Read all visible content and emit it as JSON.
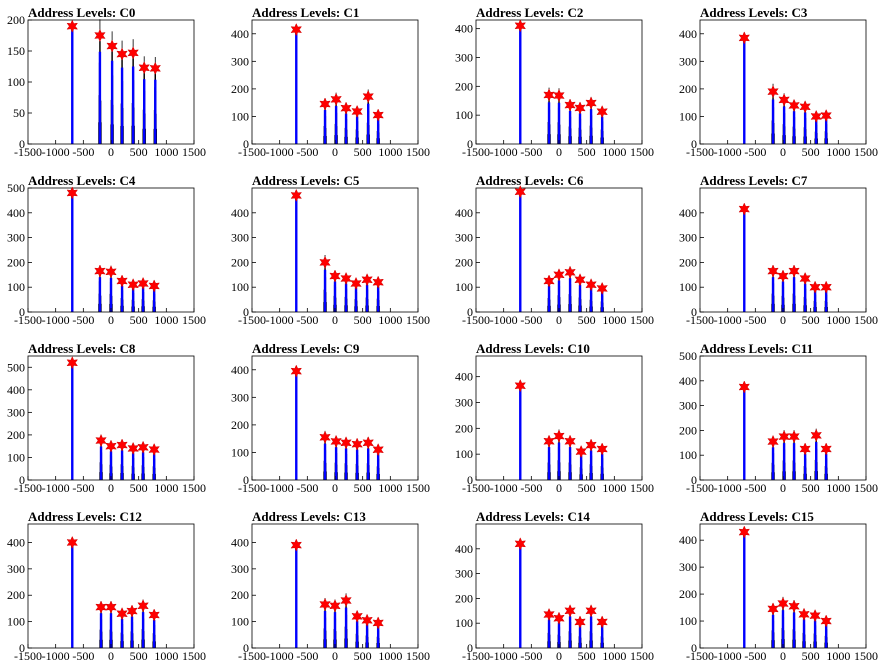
{
  "chart_data": [
    {
      "type": "bar",
      "title": "Address Levels: C0",
      "xlim": [
        -1500,
        1500
      ],
      "ylim": [
        0,
        200
      ],
      "yticks": [
        0,
        50,
        100,
        150,
        200
      ],
      "xticks": [
        -1500,
        -1000,
        -500,
        0,
        500,
        1000,
        1500
      ],
      "peaks": [
        {
          "x": -700,
          "y": 190
        },
        {
          "x": -200,
          "y": 175
        },
        {
          "x": 20,
          "y": 158
        },
        {
          "x": 200,
          "y": 145
        },
        {
          "x": 400,
          "y": 147
        },
        {
          "x": 600,
          "y": 123
        },
        {
          "x": 800,
          "y": 122
        }
      ]
    },
    {
      "type": "bar",
      "title": "Address Levels: C1",
      "xlim": [
        -1500,
        1500
      ],
      "ylim": [
        0,
        450
      ],
      "yticks": [
        0,
        100,
        200,
        300,
        400
      ],
      "xticks": [
        -1500,
        -1000,
        -500,
        0,
        500,
        1000,
        1500
      ],
      "peaks": [
        {
          "x": -700,
          "y": 415
        },
        {
          "x": -180,
          "y": 145
        },
        {
          "x": 20,
          "y": 162
        },
        {
          "x": 200,
          "y": 130
        },
        {
          "x": 400,
          "y": 118
        },
        {
          "x": 600,
          "y": 172
        },
        {
          "x": 780,
          "y": 105
        }
      ]
    },
    {
      "type": "bar",
      "title": "Address Levels: C2",
      "xlim": [
        -1500,
        1500
      ],
      "ylim": [
        0,
        430
      ],
      "yticks": [
        0,
        100,
        200,
        300,
        400
      ],
      "xticks": [
        -1500,
        -1000,
        -500,
        0,
        500,
        1000,
        1500
      ],
      "peaks": [
        {
          "x": -700,
          "y": 410
        },
        {
          "x": -180,
          "y": 170
        },
        {
          "x": 0,
          "y": 168
        },
        {
          "x": 200,
          "y": 135
        },
        {
          "x": 380,
          "y": 125
        },
        {
          "x": 580,
          "y": 142
        },
        {
          "x": 780,
          "y": 112
        }
      ]
    },
    {
      "type": "bar",
      "title": "Address Levels: C3",
      "xlim": [
        -1500,
        1500
      ],
      "ylim": [
        0,
        450
      ],
      "yticks": [
        0,
        100,
        200,
        300,
        400
      ],
      "xticks": [
        -1500,
        -1000,
        -500,
        0,
        500,
        1000,
        1500
      ],
      "peaks": [
        {
          "x": -700,
          "y": 385
        },
        {
          "x": -180,
          "y": 190
        },
        {
          "x": 20,
          "y": 160
        },
        {
          "x": 200,
          "y": 140
        },
        {
          "x": 400,
          "y": 135
        },
        {
          "x": 600,
          "y": 100
        },
        {
          "x": 780,
          "y": 103
        }
      ]
    },
    {
      "type": "bar",
      "title": "Address Levels: C4",
      "xlim": [
        -1500,
        1500
      ],
      "ylim": [
        0,
        500
      ],
      "yticks": [
        0,
        100,
        200,
        300,
        400,
        500
      ],
      "xticks": [
        -1500,
        -1000,
        -500,
        0,
        500,
        1000,
        1500
      ],
      "peaks": [
        {
          "x": -700,
          "y": 480
        },
        {
          "x": -200,
          "y": 165
        },
        {
          "x": 0,
          "y": 162
        },
        {
          "x": 200,
          "y": 125
        },
        {
          "x": 400,
          "y": 110
        },
        {
          "x": 580,
          "y": 115
        },
        {
          "x": 780,
          "y": 105
        }
      ]
    },
    {
      "type": "bar",
      "title": "Address Levels: C5",
      "xlim": [
        -1500,
        1500
      ],
      "ylim": [
        0,
        500
      ],
      "yticks": [
        0,
        100,
        200,
        300,
        400
      ],
      "xticks": [
        -1500,
        -1000,
        -500,
        0,
        500,
        1000,
        1500
      ],
      "peaks": [
        {
          "x": -700,
          "y": 470
        },
        {
          "x": -180,
          "y": 200
        },
        {
          "x": 0,
          "y": 145
        },
        {
          "x": 200,
          "y": 135
        },
        {
          "x": 380,
          "y": 115
        },
        {
          "x": 580,
          "y": 130
        },
        {
          "x": 780,
          "y": 120
        }
      ]
    },
    {
      "type": "bar",
      "title": "Address Levels: C6",
      "xlim": [
        -1500,
        1500
      ],
      "ylim": [
        0,
        500
      ],
      "yticks": [
        0,
        100,
        200,
        300,
        400
      ],
      "xticks": [
        -1500,
        -1000,
        -500,
        0,
        500,
        1000,
        1500
      ],
      "peaks": [
        {
          "x": -700,
          "y": 485
        },
        {
          "x": -180,
          "y": 125
        },
        {
          "x": 0,
          "y": 150
        },
        {
          "x": 200,
          "y": 160
        },
        {
          "x": 380,
          "y": 130
        },
        {
          "x": 580,
          "y": 110
        },
        {
          "x": 780,
          "y": 95
        }
      ]
    },
    {
      "type": "bar",
      "title": "Address Levels: C7",
      "xlim": [
        -1500,
        1500
      ],
      "ylim": [
        0,
        500
      ],
      "yticks": [
        0,
        100,
        200,
        300,
        400
      ],
      "xticks": [
        -1500,
        -1000,
        -500,
        0,
        500,
        1000,
        1500
      ],
      "peaks": [
        {
          "x": -700,
          "y": 415
        },
        {
          "x": -180,
          "y": 165
        },
        {
          "x": 0,
          "y": 145
        },
        {
          "x": 200,
          "y": 165
        },
        {
          "x": 400,
          "y": 135
        },
        {
          "x": 580,
          "y": 100
        },
        {
          "x": 780,
          "y": 100
        }
      ]
    },
    {
      "type": "bar",
      "title": "Address Levels: C8",
      "xlim": [
        -1500,
        1500
      ],
      "ylim": [
        0,
        550
      ],
      "yticks": [
        0,
        100,
        200,
        300,
        400,
        500
      ],
      "xticks": [
        -1500,
        -1000,
        -500,
        0,
        500,
        1000,
        1500
      ],
      "peaks": [
        {
          "x": -700,
          "y": 520
        },
        {
          "x": -180,
          "y": 175
        },
        {
          "x": 0,
          "y": 150
        },
        {
          "x": 200,
          "y": 155
        },
        {
          "x": 400,
          "y": 140
        },
        {
          "x": 580,
          "y": 145
        },
        {
          "x": 780,
          "y": 135
        }
      ]
    },
    {
      "type": "bar",
      "title": "Address Levels: C9",
      "xlim": [
        -1500,
        1500
      ],
      "ylim": [
        0,
        450
      ],
      "yticks": [
        0,
        100,
        200,
        300,
        400
      ],
      "xticks": [
        -1500,
        -1000,
        -500,
        0,
        500,
        1000,
        1500
      ],
      "peaks": [
        {
          "x": -700,
          "y": 395
        },
        {
          "x": -180,
          "y": 155
        },
        {
          "x": 20,
          "y": 140
        },
        {
          "x": 200,
          "y": 135
        },
        {
          "x": 400,
          "y": 130
        },
        {
          "x": 600,
          "y": 135
        },
        {
          "x": 780,
          "y": 110
        }
      ]
    },
    {
      "type": "bar",
      "title": "Address Levels: C10",
      "xlim": [
        -1500,
        1500
      ],
      "ylim": [
        0,
        480
      ],
      "yticks": [
        0,
        100,
        200,
        300,
        400
      ],
      "xticks": [
        -1500,
        -1000,
        -500,
        0,
        500,
        1000,
        1500
      ],
      "peaks": [
        {
          "x": -700,
          "y": 365
        },
        {
          "x": -180,
          "y": 150
        },
        {
          "x": 0,
          "y": 170
        },
        {
          "x": 200,
          "y": 150
        },
        {
          "x": 400,
          "y": 110
        },
        {
          "x": 580,
          "y": 135
        },
        {
          "x": 780,
          "y": 120
        }
      ]
    },
    {
      "type": "bar",
      "title": "Address Levels: C11",
      "xlim": [
        -1500,
        1500
      ],
      "ylim": [
        0,
        500
      ],
      "yticks": [
        0,
        100,
        200,
        300,
        400,
        500
      ],
      "xticks": [
        -1500,
        -1000,
        -500,
        0,
        500,
        1000,
        1500
      ],
      "peaks": [
        {
          "x": -700,
          "y": 375
        },
        {
          "x": -180,
          "y": 155
        },
        {
          "x": 20,
          "y": 175
        },
        {
          "x": 200,
          "y": 175
        },
        {
          "x": 400,
          "y": 125
        },
        {
          "x": 600,
          "y": 180
        },
        {
          "x": 780,
          "y": 125
        }
      ]
    },
    {
      "type": "bar",
      "title": "Address Levels: C12",
      "xlim": [
        -1500,
        1500
      ],
      "ylim": [
        0,
        470
      ],
      "yticks": [
        0,
        100,
        200,
        300,
        400
      ],
      "xticks": [
        -1500,
        -1000,
        -500,
        0,
        500,
        1000,
        1500
      ],
      "peaks": [
        {
          "x": -700,
          "y": 400
        },
        {
          "x": -180,
          "y": 155
        },
        {
          "x": 0,
          "y": 155
        },
        {
          "x": 200,
          "y": 130
        },
        {
          "x": 380,
          "y": 140
        },
        {
          "x": 580,
          "y": 160
        },
        {
          "x": 780,
          "y": 125
        }
      ]
    },
    {
      "type": "bar",
      "title": "Address Levels: C13",
      "xlim": [
        -1500,
        1500
      ],
      "ylim": [
        0,
        470
      ],
      "yticks": [
        0,
        100,
        200,
        300,
        400
      ],
      "xticks": [
        -1500,
        -1000,
        -500,
        0,
        500,
        1000,
        1500
      ],
      "peaks": [
        {
          "x": -700,
          "y": 390
        },
        {
          "x": -180,
          "y": 165
        },
        {
          "x": 0,
          "y": 160
        },
        {
          "x": 200,
          "y": 180
        },
        {
          "x": 400,
          "y": 120
        },
        {
          "x": 580,
          "y": 105
        },
        {
          "x": 780,
          "y": 95
        }
      ]
    },
    {
      "type": "bar",
      "title": "Address Levels: C14",
      "xlim": [
        -1500,
        1500
      ],
      "ylim": [
        0,
        500
      ],
      "yticks": [
        0,
        100,
        200,
        300,
        400
      ],
      "xticks": [
        -1500,
        -1000,
        -500,
        0,
        500,
        1000,
        1500
      ],
      "peaks": [
        {
          "x": -700,
          "y": 420
        },
        {
          "x": -180,
          "y": 135
        },
        {
          "x": 0,
          "y": 120
        },
        {
          "x": 200,
          "y": 150
        },
        {
          "x": 380,
          "y": 105
        },
        {
          "x": 580,
          "y": 150
        },
        {
          "x": 780,
          "y": 105
        }
      ]
    },
    {
      "type": "bar",
      "title": "Address Levels: C15",
      "xlim": [
        -1500,
        1500
      ],
      "ylim": [
        0,
        460
      ],
      "yticks": [
        0,
        100,
        200,
        300,
        400
      ],
      "xticks": [
        -1500,
        -1000,
        -500,
        0,
        500,
        1000,
        1500
      ],
      "peaks": [
        {
          "x": -700,
          "y": 430
        },
        {
          "x": -180,
          "y": 145
        },
        {
          "x": 0,
          "y": 165
        },
        {
          "x": 200,
          "y": 155
        },
        {
          "x": 380,
          "y": 125
        },
        {
          "x": 580,
          "y": 120
        },
        {
          "x": 780,
          "y": 100
        }
      ]
    }
  ],
  "colors": {
    "bar_fill": "#0000ff",
    "bar_outline": "#000000",
    "marker": "#ff0000",
    "axis": "#000000"
  }
}
